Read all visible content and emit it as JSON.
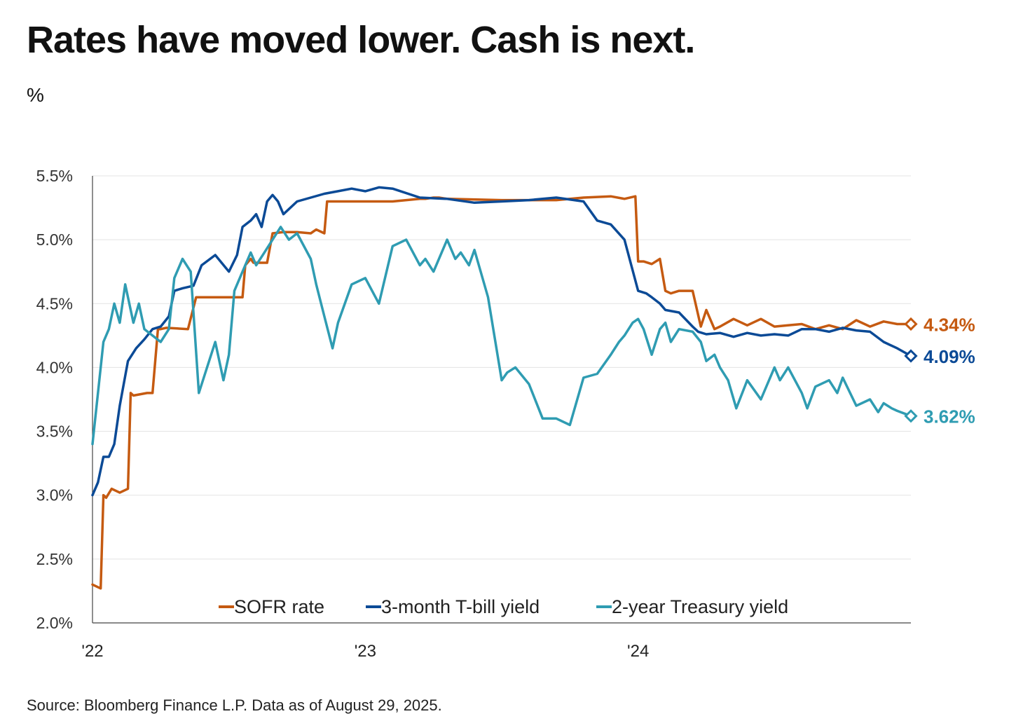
{
  "title": "Rates have moved lower. Cash is next.",
  "unit_label": "%",
  "source": "Source: Bloomberg Finance L.P. Data as of August 29, 2025.",
  "chart_data": {
    "type": "line",
    "ylim": [
      2.0,
      5.5
    ],
    "yticks": [
      2.0,
      2.5,
      3.0,
      3.5,
      4.0,
      4.5,
      5.0,
      5.5
    ],
    "ytick_labels": [
      "2.0%",
      "2.5%",
      "3.0%",
      "3.5%",
      "4.0%",
      "4.5%",
      "5.0%",
      "5.5%"
    ],
    "xlim": [
      2022.0,
      2025.0
    ],
    "xticks": [
      2022,
      2023,
      2024
    ],
    "xtick_labels": [
      "'22",
      "'23",
      "'24"
    ],
    "grid": "horizontal",
    "legend_position": "bottom-center",
    "series": [
      {
        "name": "SOFR rate",
        "color": "#C55A11",
        "end_label": "4.34%",
        "x": [
          2022.0,
          2022.03,
          2022.04,
          2022.05,
          2022.07,
          2022.1,
          2022.13,
          2022.14,
          2022.15,
          2022.2,
          2022.22,
          2022.24,
          2022.25,
          2022.27,
          2022.35,
          2022.38,
          2022.41,
          2022.42,
          2022.45,
          2022.55,
          2022.56,
          2022.58,
          2022.59,
          2022.64,
          2022.66,
          2022.7,
          2022.75,
          2022.8,
          2022.82,
          2022.85,
          2022.86,
          2022.87,
          2022.9,
          2023.0,
          2023.1,
          2023.2,
          2023.22,
          2023.25,
          2023.27,
          2023.3,
          2023.5,
          2023.6,
          2023.7,
          2023.8,
          2023.9,
          2023.95,
          2023.99,
          2024.0,
          2024.02,
          2024.05,
          2024.08,
          2024.1,
          2024.12,
          2024.15,
          2024.2,
          2024.23,
          2024.25,
          2024.28,
          2024.3,
          2024.35,
          2024.4,
          2024.45,
          2024.5,
          2024.55,
          2024.6,
          2024.65,
          2024.7,
          2024.75,
          2024.8,
          2024.85,
          2024.9,
          2024.95,
          2025.0
        ],
        "y": [
          2.3,
          2.27,
          3.0,
          2.98,
          3.05,
          3.02,
          3.05,
          3.8,
          3.78,
          3.8,
          3.8,
          4.3,
          4.3,
          4.31,
          4.3,
          4.55,
          4.55,
          4.55,
          4.55,
          4.55,
          4.8,
          4.85,
          4.82,
          4.82,
          5.05,
          5.06,
          5.06,
          5.05,
          5.08,
          5.05,
          5.3,
          5.3,
          5.3,
          5.3,
          5.3,
          5.32,
          5.32,
          5.33,
          5.33,
          5.32,
          5.31,
          5.31,
          5.31,
          5.33,
          5.34,
          5.32,
          5.34,
          4.83,
          4.83,
          4.81,
          4.85,
          4.6,
          4.58,
          4.6,
          4.6,
          4.32,
          4.45,
          4.3,
          4.32,
          4.38,
          4.33,
          4.38,
          4.32,
          4.33,
          4.34,
          4.3,
          4.33,
          4.3,
          4.37,
          4.32,
          4.36,
          4.34,
          4.34
        ]
      },
      {
        "name": "3-month T-bill yield",
        "color": "#0B4A96",
        "end_label": "4.09%",
        "x": [
          2022.0,
          2022.02,
          2022.04,
          2022.06,
          2022.08,
          2022.1,
          2022.13,
          2022.16,
          2022.19,
          2022.22,
          2022.25,
          2022.28,
          2022.3,
          2022.33,
          2022.37,
          2022.4,
          2022.45,
          2022.5,
          2022.53,
          2022.55,
          2022.58,
          2022.6,
          2022.62,
          2022.64,
          2022.66,
          2022.68,
          2022.7,
          2022.75,
          2022.8,
          2022.85,
          2022.9,
          2022.95,
          2023.0,
          2023.05,
          2023.1,
          2023.2,
          2023.3,
          2023.4,
          2023.5,
          2023.6,
          2023.7,
          2023.8,
          2023.85,
          2023.9,
          2023.95,
          2024.0,
          2024.03,
          2024.05,
          2024.08,
          2024.1,
          2024.15,
          2024.2,
          2024.22,
          2024.25,
          2024.3,
          2024.35,
          2024.4,
          2024.45,
          2024.5,
          2024.55,
          2024.6,
          2024.65,
          2024.7,
          2024.75,
          2024.8,
          2024.85,
          2024.9,
          2024.95,
          2025.0
        ],
        "y": [
          3.0,
          3.1,
          3.3,
          3.3,
          3.4,
          3.7,
          4.05,
          4.15,
          4.22,
          4.3,
          4.32,
          4.4,
          4.6,
          4.62,
          4.64,
          4.8,
          4.88,
          4.75,
          4.88,
          5.1,
          5.15,
          5.2,
          5.1,
          5.3,
          5.35,
          5.3,
          5.2,
          5.3,
          5.33,
          5.36,
          5.38,
          5.4,
          5.38,
          5.41,
          5.4,
          5.33,
          5.32,
          5.29,
          5.3,
          5.31,
          5.33,
          5.3,
          5.15,
          5.12,
          5.0,
          4.6,
          4.58,
          4.55,
          4.5,
          4.45,
          4.43,
          4.32,
          4.28,
          4.26,
          4.27,
          4.24,
          4.27,
          4.25,
          4.26,
          4.25,
          4.3,
          4.3,
          4.28,
          4.31,
          4.29,
          4.28,
          4.2,
          4.15,
          4.09
        ]
      },
      {
        "name": "2-year Treasury yield",
        "color": "#2F9CB2",
        "end_label": "3.62%",
        "x": [
          2022.0,
          2022.02,
          2022.04,
          2022.06,
          2022.08,
          2022.1,
          2022.12,
          2022.15,
          2022.17,
          2022.19,
          2022.22,
          2022.25,
          2022.28,
          2022.3,
          2022.33,
          2022.36,
          2022.39,
          2022.42,
          2022.45,
          2022.48,
          2022.5,
          2022.52,
          2022.55,
          2022.58,
          2022.6,
          2022.63,
          2022.66,
          2022.69,
          2022.72,
          2022.75,
          2022.8,
          2022.82,
          2022.85,
          2022.88,
          2022.9,
          2022.95,
          2023.0,
          2023.05,
          2023.1,
          2023.15,
          2023.2,
          2023.22,
          2023.25,
          2023.28,
          2023.3,
          2023.33,
          2023.35,
          2023.38,
          2023.4,
          2023.45,
          2023.5,
          2023.52,
          2023.55,
          2023.6,
          2023.65,
          2023.7,
          2023.75,
          2023.8,
          2023.85,
          2023.9,
          2023.93,
          2023.95,
          2023.98,
          2024.0,
          2024.02,
          2024.05,
          2024.08,
          2024.1,
          2024.12,
          2024.15,
          2024.2,
          2024.23,
          2024.25,
          2024.28,
          2024.3,
          2024.33,
          2024.36,
          2024.4,
          2024.45,
          2024.5,
          2024.52,
          2024.55,
          2024.6,
          2024.62,
          2024.65,
          2024.7,
          2024.73,
          2024.75,
          2024.8,
          2024.85,
          2024.88,
          2024.9,
          2024.93,
          2024.95,
          2025.0
        ],
        "y": [
          3.4,
          3.8,
          4.2,
          4.3,
          4.5,
          4.35,
          4.65,
          4.35,
          4.5,
          4.3,
          4.25,
          4.2,
          4.3,
          4.7,
          4.85,
          4.75,
          3.8,
          4.0,
          4.2,
          3.9,
          4.1,
          4.6,
          4.75,
          4.9,
          4.8,
          4.9,
          5.0,
          5.1,
          5.0,
          5.05,
          4.85,
          4.65,
          4.4,
          4.15,
          4.35,
          4.65,
          4.7,
          4.5,
          4.95,
          5.0,
          4.8,
          4.85,
          4.75,
          4.9,
          5.0,
          4.85,
          4.9,
          4.8,
          4.92,
          4.55,
          3.9,
          3.96,
          4.0,
          3.87,
          3.6,
          3.6,
          3.55,
          3.92,
          3.95,
          4.1,
          4.2,
          4.25,
          4.35,
          4.38,
          4.3,
          4.1,
          4.3,
          4.35,
          4.2,
          4.3,
          4.28,
          4.2,
          4.05,
          4.1,
          4.0,
          3.9,
          3.68,
          3.9,
          3.75,
          4.0,
          3.9,
          4.0,
          3.8,
          3.68,
          3.85,
          3.9,
          3.8,
          3.92,
          3.7,
          3.75,
          3.65,
          3.72,
          3.68,
          3.66,
          3.62
        ]
      }
    ]
  }
}
